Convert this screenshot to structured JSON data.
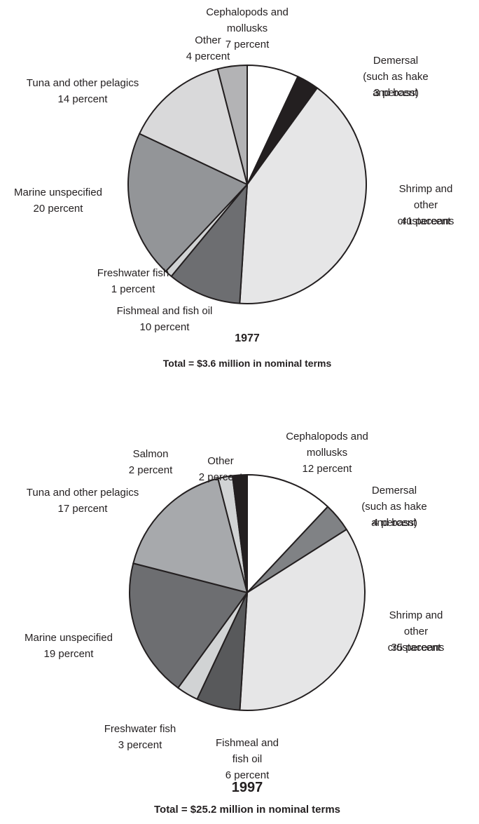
{
  "chart_data": [
    {
      "type": "pie",
      "title": "1977",
      "subtitle": "Total = $3.6 million in nominal terms",
      "categories": [
        "Cephalopods and\nmollusks",
        "Demersal\n(such as hake and bass)",
        "Shrimp and other\ncrustaceans",
        "Fishmeal and fish oil",
        "Freshwater fish",
        "Marine unspecified",
        "Tuna and other pelagics",
        "Other"
      ],
      "values": [
        7,
        3,
        41,
        10,
        1,
        20,
        14,
        4
      ],
      "value_labels": [
        "7 percent",
        "3 percent",
        "41 percent",
        "10 percent",
        "1 percent",
        "20 percent",
        "14 percent",
        "4 percent"
      ],
      "colors": [
        "#ffffff",
        "#231f20",
        "#e6e6e7",
        "#6d6e71",
        "#d1d3d4",
        "#939598",
        "#d9d9da",
        "#b3b3b5"
      ]
    },
    {
      "type": "pie",
      "title": "1997",
      "subtitle": "Total = $25.2 million in nominal terms",
      "categories": [
        "Cephalopods and\nmollusks",
        "Demersal\n(such as hake and bass)",
        "Shrimp and other\ncrustaceans",
        "Fishmeal and\nfish oil",
        "Freshwater fish",
        "Marine unspecified",
        "Tuna and other pelagics",
        "Salmon",
        "Other"
      ],
      "values": [
        12,
        4,
        35,
        6,
        3,
        19,
        17,
        2,
        2
      ],
      "value_labels": [
        "12 percent",
        "4 percent",
        "35 percent",
        "6 percent",
        "3 percent",
        "19 percent",
        "17 percent",
        "2 percent",
        "2 percent"
      ],
      "colors": [
        "#ffffff",
        "#808285",
        "#e6e6e7",
        "#58595b",
        "#d1d3d4",
        "#6d6e71",
        "#a7a9ac",
        "#d1d3d4",
        "#231f20"
      ]
    }
  ]
}
